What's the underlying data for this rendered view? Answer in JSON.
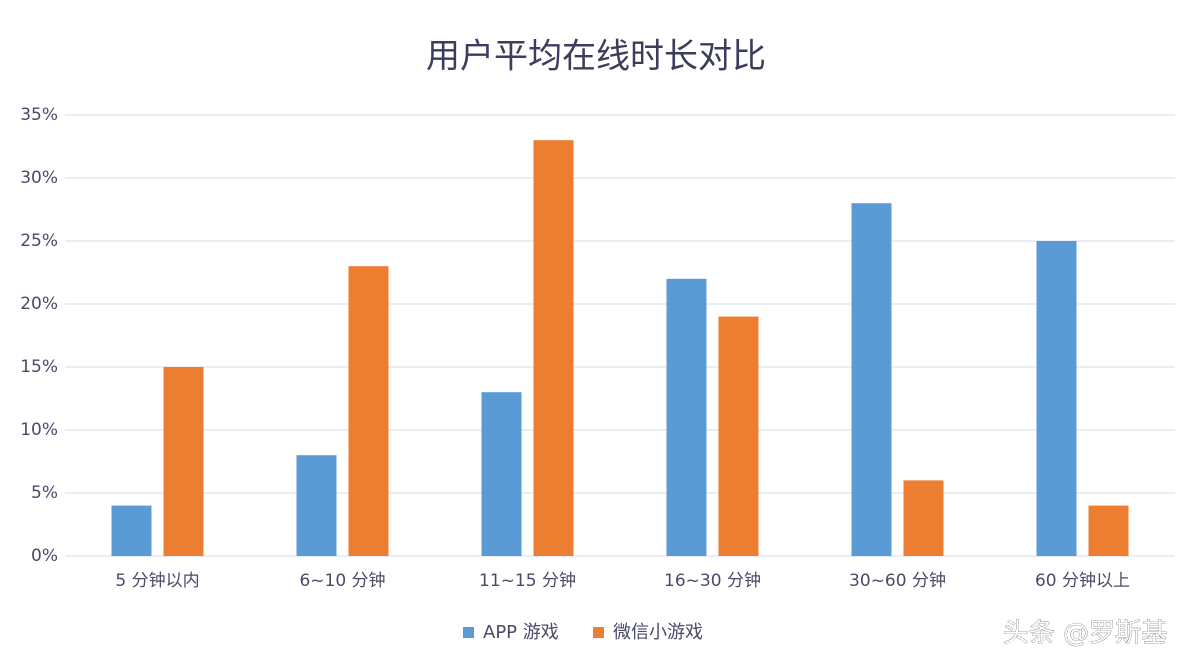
{
  "chart_data": {
    "type": "bar",
    "title": "用户平均在线时长对比",
    "categories": [
      "5 分钟以内",
      "6~10 分钟",
      "11~15 分钟",
      "16~30 分钟",
      "30~60 分钟",
      "60 分钟以上"
    ],
    "series": [
      {
        "name": "APP 游戏",
        "color": "#5b9bd5",
        "values": [
          4,
          8,
          13,
          22,
          28,
          25
        ]
      },
      {
        "name": "微信小游戏",
        "color": "#ed7d31",
        "values": [
          15,
          23,
          33,
          19,
          6,
          4
        ]
      }
    ],
    "ylim": [
      0,
      35
    ],
    "yticks": [
      {
        "value": 0,
        "label": "0%"
      },
      {
        "value": 5,
        "label": "5%"
      },
      {
        "value": 10,
        "label": "10%"
      },
      {
        "value": 15,
        "label": "15%"
      },
      {
        "value": 20,
        "label": "20%"
      },
      {
        "value": 25,
        "label": "25%"
      },
      {
        "value": 30,
        "label": "30%"
      },
      {
        "value": 35,
        "label": "35%"
      }
    ],
    "grid": true,
    "legend": "bottom"
  },
  "watermark": "头条 @罗斯基"
}
